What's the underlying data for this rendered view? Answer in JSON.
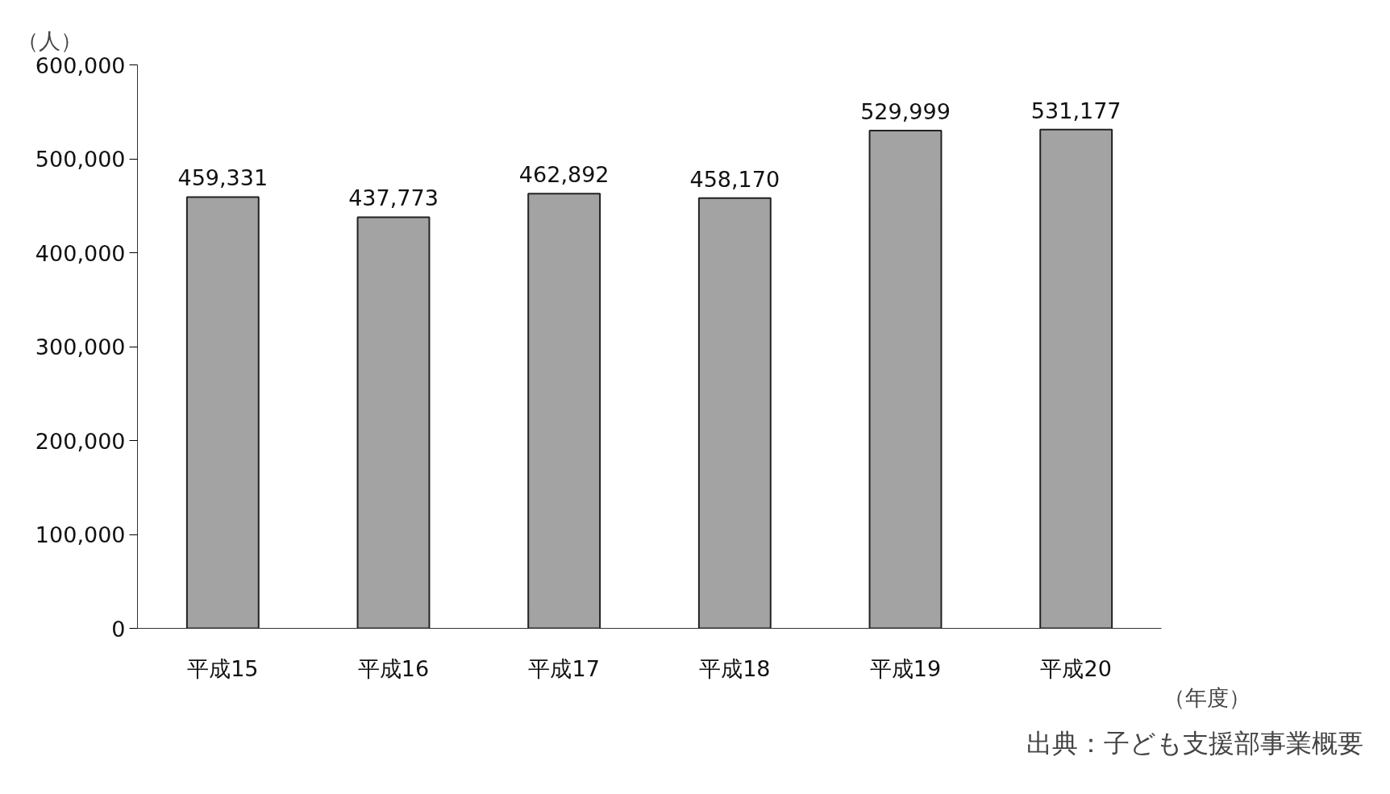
{
  "chart_data": {
    "type": "bar",
    "ylabel": "（人）",
    "xlabel": "（年度）",
    "categories": [
      "平成15",
      "平成16",
      "平成17",
      "平成18",
      "平成19",
      "平成20"
    ],
    "values": [
      459331,
      437773,
      462892,
      458170,
      529999,
      531177
    ],
    "color": "#a3a3a3",
    "data_labels": true,
    "value_labels": [
      "459,331",
      "437,773",
      "462,892",
      "458,170",
      "529,999",
      "531,177"
    ],
    "ylim": [
      0,
      600000
    ],
    "yticks": [
      {
        "value": 0,
        "label": "0"
      },
      {
        "value": 100000,
        "label": "100,000"
      },
      {
        "value": 200000,
        "label": "200,000"
      },
      {
        "value": 300000,
        "label": "300,000"
      },
      {
        "value": 400000,
        "label": "400,000"
      },
      {
        "value": 500000,
        "label": "500,000"
      },
      {
        "value": 600000,
        "label": "600,000"
      }
    ],
    "grid": false,
    "legend": false,
    "annotations": [
      "出典：子ども支援部事業概要"
    ]
  }
}
